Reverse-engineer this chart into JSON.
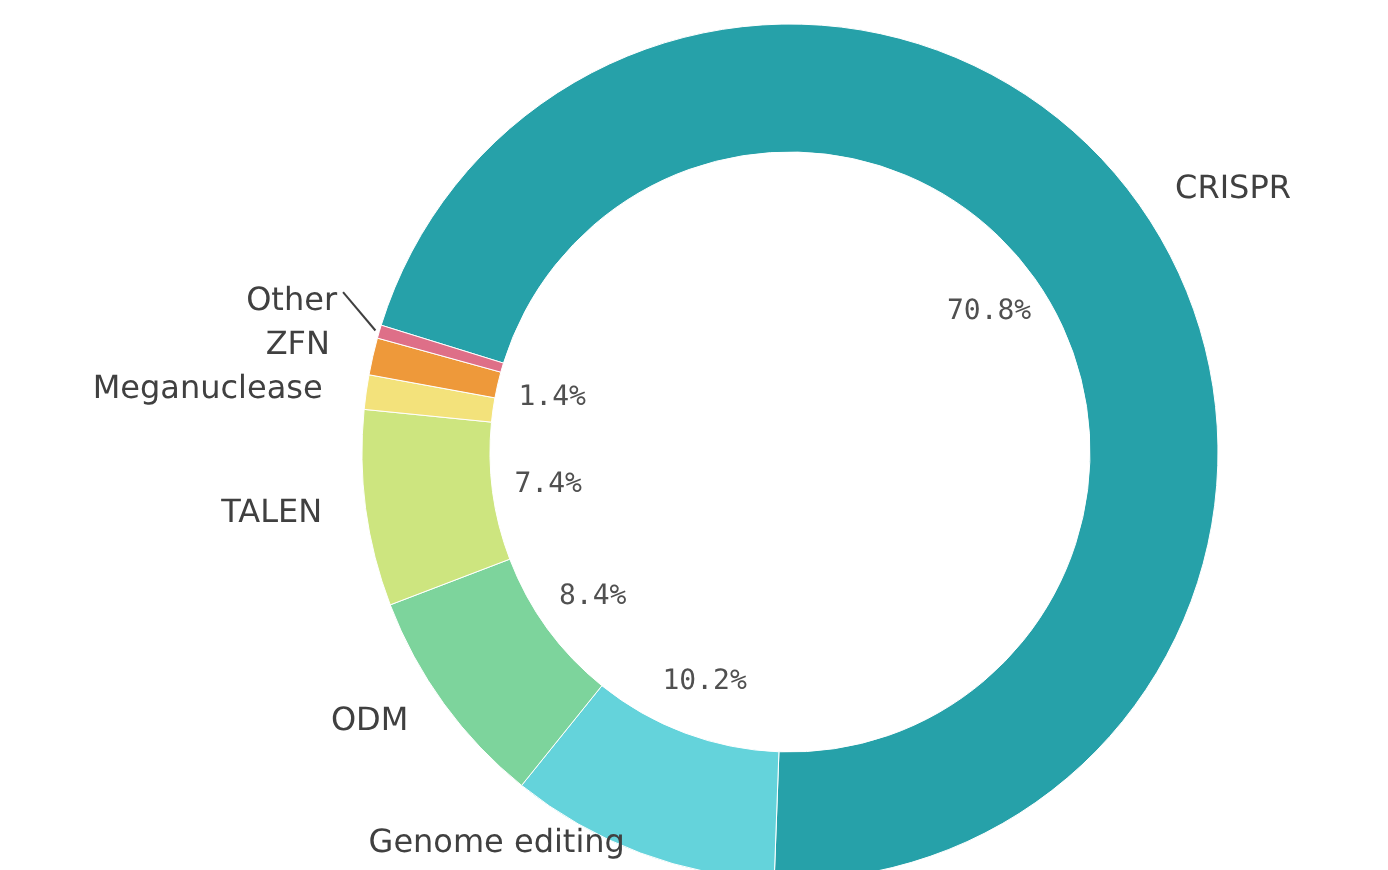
{
  "chart_data": {
    "type": "donut",
    "categories": [
      "CRISPR",
      "Genome editing",
      "ODM",
      "TALEN",
      "Meganuclease",
      "ZFN",
      "Other"
    ],
    "values": [
      70.8,
      10.2,
      8.4,
      7.4,
      1.3,
      1.4,
      0.5
    ],
    "colors": [
      "#26a1a9",
      "#64d3db",
      "#7dd49c",
      "#cde57f",
      "#f3e27b",
      "#ee993a",
      "#de6f88"
    ],
    "value_labels": [
      "70.8%",
      "10.2%",
      "8.4%",
      "7.4%",
      null,
      "1.4%",
      null
    ]
  }
}
